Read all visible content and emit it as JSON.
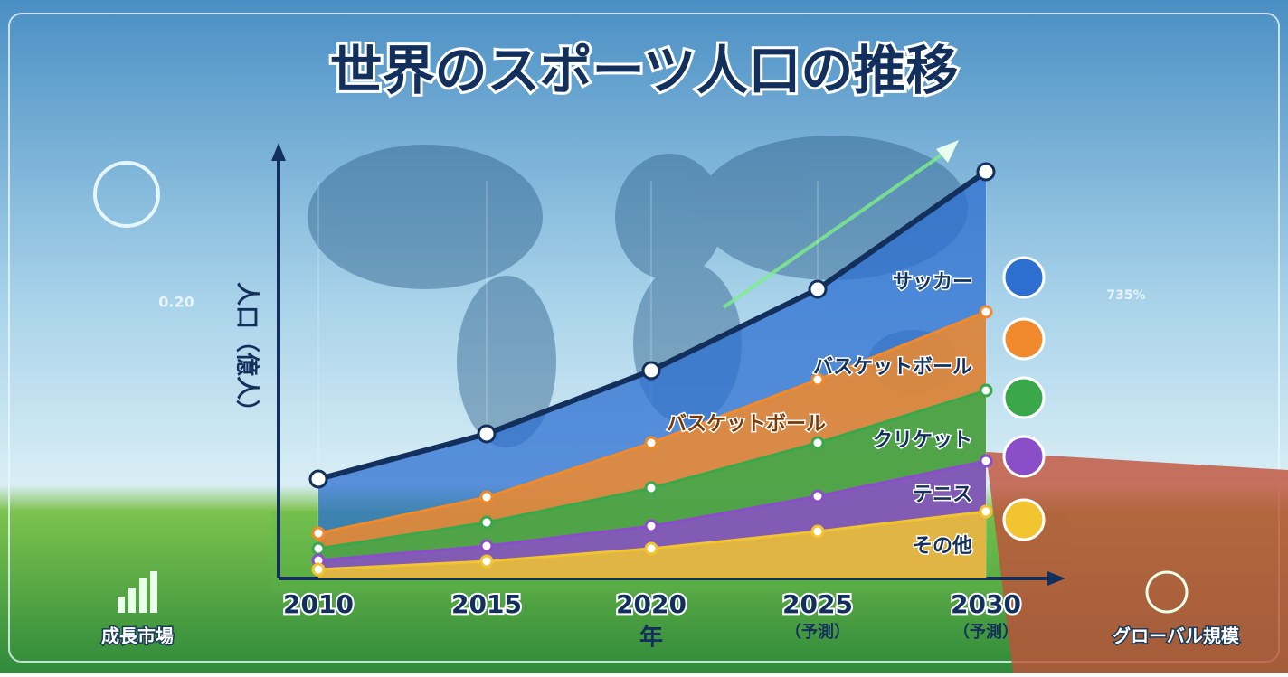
{
  "chart_data": {
    "type": "line",
    "title": "世界のスポーツ人口の推移",
    "ylabel": "人口（億人）",
    "xlabel": "年",
    "categories": [
      "2010",
      "2015",
      "2020",
      "2025",
      "2030"
    ],
    "x_sublabels": [
      null,
      null,
      null,
      "（予測）",
      "（予測）"
    ],
    "ylim": [
      0,
      48
    ],
    "series": [
      {
        "name": "サッカー",
        "color": "#2c6fd0",
        "values": [
          11,
          16,
          23,
          32,
          45
        ]
      },
      {
        "name": "バスケットボール",
        "color": "#f08a2c",
        "values": [
          5,
          9,
          15,
          22,
          29.5
        ]
      },
      {
        "name": "クリケット",
        "color": "#3aa84a",
        "values": [
          3.3,
          6.2,
          10,
          15,
          20.8
        ]
      },
      {
        "name": "テニス",
        "color": "#8a4fc8",
        "values": [
          2,
          3.6,
          5.8,
          9.1,
          13
        ]
      },
      {
        "name": "その他",
        "color": "#f2c530",
        "values": [
          1,
          1.9,
          3.3,
          5.2,
          7.4
        ]
      }
    ],
    "annotations": [
      "バスケットボール"
    ],
    "side_labels": [
      "成長市場",
      "グローバル規模"
    ],
    "decor_texts": [
      "0.20",
      "735%"
    ]
  }
}
